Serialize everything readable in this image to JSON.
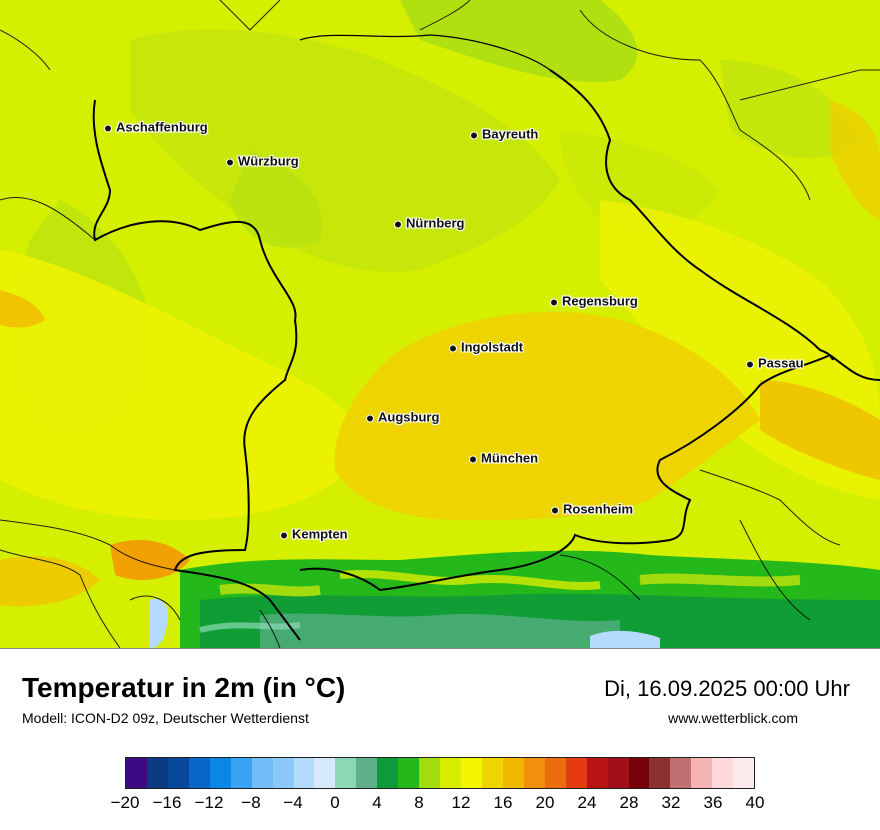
{
  "title": "Temperatur in 2m (in °C)",
  "model": "Modell: ICON-D2 09z, Deutscher Wetterdienst",
  "datetime": "Di, 16.09.2025 00:00 Uhr",
  "website": "www.wetterblick.com",
  "cities": [
    {
      "name": "Aschaffenburg"
    },
    {
      "name": "Bayreuth"
    },
    {
      "name": "Würzburg"
    },
    {
      "name": "Nürnberg"
    },
    {
      "name": "Regensburg"
    },
    {
      "name": "Ingolstadt"
    },
    {
      "name": "Passau"
    },
    {
      "name": "Augsburg"
    },
    {
      "name": "München"
    },
    {
      "name": "Rosenheim"
    },
    {
      "name": "Kempten"
    }
  ],
  "legend": {
    "unit": "°C",
    "min": -20,
    "max": 40,
    "step": 2,
    "tick_labels": [
      "−20",
      "−16",
      "−12",
      "−8",
      "−4",
      "0",
      "4",
      "8",
      "12",
      "16",
      "20",
      "24",
      "28",
      "32",
      "36",
      "40"
    ],
    "colors": [
      "#3c0a82",
      "#0a3a82",
      "#08489a",
      "#0866c8",
      "#0a86e6",
      "#3aa2f5",
      "#72bcf8",
      "#8ec8fa",
      "#b4dafc",
      "#d6e8fc",
      "#8cd8b6",
      "#5eb08a",
      "#0e9a38",
      "#24b81a",
      "#a2dc0e",
      "#d8ec00",
      "#f2f400",
      "#eed400",
      "#f0b800",
      "#f0900c",
      "#ec6c10",
      "#e43c10",
      "#b81414",
      "#a00e18",
      "#780008",
      "#8c3030",
      "#c07070",
      "#f4b4b4",
      "#fcd8dc",
      "#fbeaec"
    ]
  }
}
